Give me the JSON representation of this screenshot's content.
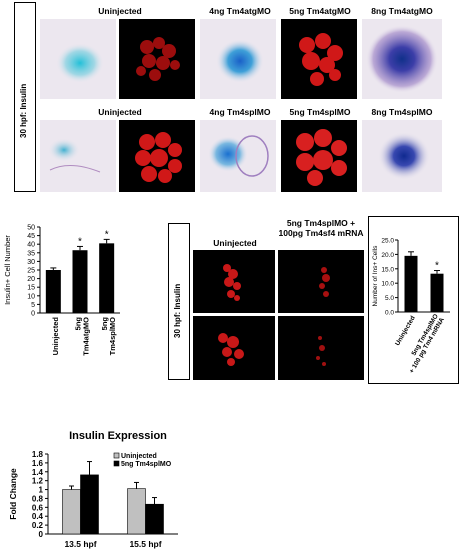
{
  "panel_a": {
    "side_label": "30 hpf: Insulin",
    "row1_headers": [
      "Uninjected",
      "4ng Tm4atgMO",
      "5ng Tm4atgMO",
      "8ng Tm4atgMO"
    ],
    "row2_headers": [
      "Uninjected",
      "4ng Tm4splMO",
      "5ng Tm4splMO",
      "8ng Tm4splMO"
    ]
  },
  "panel_c": {
    "side_label": "30 hpf: Insulin",
    "col_headers": [
      "Uninjected",
      "5ng Tm4splMO +",
      "100pg Tm4sf4 mRNA"
    ]
  },
  "chart_data": [
    {
      "type": "bar",
      "ylabel": "Insulin+ Cell Number",
      "categories": [
        "Uninjected",
        "5ng Tm4atgMO",
        "5ng Tm4splMO"
      ],
      "values": [
        25,
        36.5,
        40.5
      ],
      "errors": [
        1.2,
        2.2,
        2.3
      ],
      "significance": [
        "",
        "*",
        "*"
      ],
      "ylim": [
        0,
        50
      ],
      "yticks": [
        "0",
        "5",
        "10",
        "15",
        "20",
        "25",
        "30",
        "35",
        "40",
        "45",
        "50"
      ]
    },
    {
      "type": "bar",
      "ylabel": "Number of Ins+ Cells",
      "categories": [
        "Uninjected",
        "5ng Tm4splMO + 100 pg Tm4 mRNA"
      ],
      "values": [
        19.5,
        13.3
      ],
      "errors": [
        1.4,
        1.1
      ],
      "significance": [
        "",
        "*"
      ],
      "ylim": [
        0,
        25
      ],
      "yticks": [
        "0.0",
        "5.0",
        "10.0",
        "15.0",
        "20.0",
        "25.0"
      ]
    },
    {
      "type": "bar",
      "title": "Insulin Expression",
      "ylabel": "Fold Change",
      "categories": [
        "13.5 hpf",
        "15.5 hpf"
      ],
      "series": [
        {
          "name": "Uninjected",
          "color": "#c0c0c0",
          "values": [
            1.0,
            1.02
          ],
          "errors": [
            0.08,
            0.14
          ]
        },
        {
          "name": "5ng Tm4splMO",
          "color": "#000000",
          "values": [
            1.33,
            0.67
          ],
          "errors": [
            0.3,
            0.15
          ]
        }
      ],
      "ylim": [
        0,
        1.8
      ],
      "yticks": [
        "0",
        "0.2",
        "0.4",
        "0.6",
        "0.8",
        "1",
        "1.2",
        "1.4",
        "1.6",
        "1.8"
      ],
      "legend": "top-left"
    }
  ]
}
